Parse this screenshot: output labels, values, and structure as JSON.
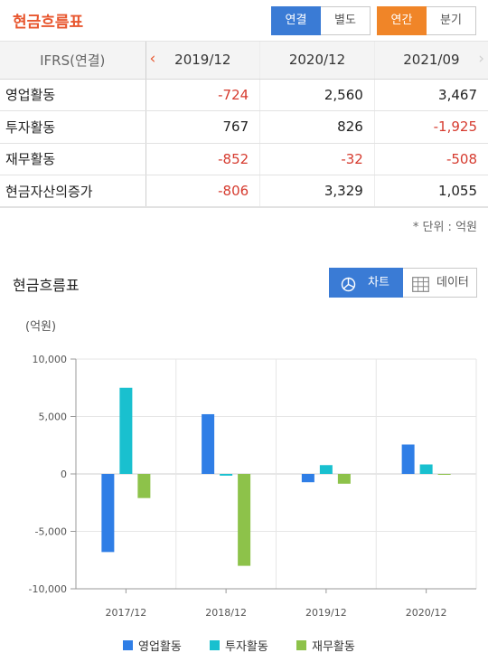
{
  "header": {
    "title": "현금흐름표",
    "buttons": {
      "consolidated": "연결",
      "separate": "별도",
      "annual": "연간",
      "quarterly": "분기"
    }
  },
  "table": {
    "header_label": "IFRS(연결)",
    "columns": [
      "2019/12",
      "2020/12",
      "2021/09"
    ],
    "rows": [
      {
        "label": "영업활동",
        "values": [
          "-724",
          "2,560",
          "3,467"
        ]
      },
      {
        "label": "투자활동",
        "values": [
          "767",
          "826",
          "-1,925"
        ]
      },
      {
        "label": "재무활동",
        "values": [
          "-852",
          "-32",
          "-508"
        ]
      },
      {
        "label": "현금자산의증가",
        "values": [
          "-806",
          "3,329",
          "1,055"
        ]
      }
    ],
    "unit_note": "* 단위 : 억원"
  },
  "chart_section": {
    "title": "현금흐름표",
    "toggle": {
      "chart": "차트",
      "data": "데이터"
    }
  },
  "colors": {
    "series": [
      "#2f7ee6",
      "#19c0cf",
      "#8dc24a"
    ],
    "negative": "#d63b2f",
    "accent_blue": "#3a7bd5",
    "accent_orange": "#f08528",
    "title": "#e8572f"
  },
  "chart_data": {
    "type": "bar",
    "unit_label": "(억원)",
    "categories": [
      "2017/12",
      "2018/12",
      "2019/12",
      "2020/12"
    ],
    "series": [
      {
        "name": "영업활동",
        "values": [
          -6800,
          5200,
          -724,
          2560
        ]
      },
      {
        "name": "투자활동",
        "values": [
          7500,
          -150,
          767,
          826
        ]
      },
      {
        "name": "재무활동",
        "values": [
          -2100,
          -8000,
          -852,
          -32
        ]
      }
    ],
    "y_ticks": [
      "10,000",
      "5,000",
      "0",
      "-5,000",
      "-10,000"
    ],
    "y_tick_values": [
      10000,
      5000,
      0,
      -5000,
      -10000
    ],
    "ylim": [
      -10000,
      10000
    ],
    "grid": true,
    "legend_position": "bottom"
  }
}
